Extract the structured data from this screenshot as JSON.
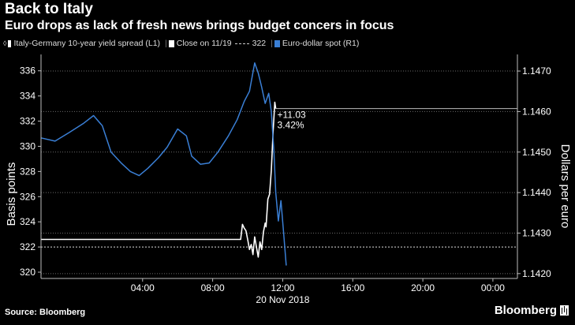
{
  "header": {
    "title": "Back to Italy",
    "subtitle": "Euro drops as lack of fresh news brings budget concers in focus"
  },
  "legend": {
    "series1": "Italy-Germany 10-year yield spread (L1)",
    "close": "Close on 11/19",
    "close_value": "322",
    "series2": "Euro-dollar spot (R1)"
  },
  "footer": {
    "source": "Source: Bloomberg",
    "brand": "Bloomberg"
  },
  "colors": {
    "spread": "#ffffff",
    "eurusd": "#3a7fd5",
    "close_line": "#dddddd",
    "grid": "#6a6a6a"
  },
  "chart_data": {
    "type": "line",
    "title": "Back to Italy",
    "xlabel": "20 Nov 2018",
    "ylabel_left": "Basis points",
    "ylabel_right": "Dollars per euro",
    "x_ticks": [
      "04:00",
      "08:00",
      "12:00",
      "16:00",
      "20:00",
      "00:00"
    ],
    "x_tick_hours": [
      4,
      8,
      12,
      16,
      20,
      24
    ],
    "xlim_hours": [
      -1.8,
      25.4
    ],
    "y_left_ticks": [
      "320",
      "322",
      "324",
      "326",
      "328",
      "330",
      "332",
      "334",
      "336"
    ],
    "y_left_lim": [
      319.5,
      337.3
    ],
    "y_right_ticks": [
      "1.1420",
      "1.1430",
      "1.1440",
      "1.1450",
      "1.1460",
      "1.1470"
    ],
    "y_right_lim": [
      1.14188,
      1.14741
    ],
    "close_value": 322,
    "annotation_change": "+11.03",
    "annotation_pct": "3.42%",
    "annotation_level_bp": 333.0,
    "series": [
      {
        "name": "Italy-Germany 10-year yield spread (L1)",
        "axis": "left",
        "x": [
          -1.8,
          5.0,
          8.0,
          9.0,
          9.6,
          9.7,
          9.8,
          9.9,
          10.0,
          10.1,
          10.2,
          10.3,
          10.4,
          10.5,
          10.6,
          10.7,
          10.8,
          10.9,
          11.0,
          11.05,
          11.15,
          11.25,
          11.35,
          11.45,
          11.55,
          11.6
        ],
        "values": [
          322.6,
          322.6,
          322.6,
          322.6,
          322.6,
          323.8,
          323.5,
          323.3,
          322.6,
          321.8,
          322.2,
          321.4,
          322.8,
          322.0,
          321.2,
          322.4,
          321.8,
          323.2,
          323.9,
          323.6,
          325.8,
          326.2,
          328.1,
          331.1,
          333.5,
          333.0
        ]
      },
      {
        "name": "Euro-dollar spot (R1)",
        "axis": "right",
        "x": [
          -1.8,
          -1.0,
          -0.2,
          0.6,
          1.2,
          1.7,
          2.2,
          2.8,
          3.3,
          3.8,
          4.3,
          4.9,
          5.4,
          6.0,
          6.5,
          6.8,
          7.3,
          7.8,
          8.3,
          8.9,
          9.4,
          9.8,
          10.1,
          10.4,
          10.6,
          10.8,
          11.0,
          11.2,
          11.35,
          11.5,
          11.6,
          11.75,
          11.9,
          12.05,
          12.2
        ],
        "values": [
          1.14535,
          1.14527,
          1.14548,
          1.1457,
          1.1459,
          1.14565,
          1.145,
          1.14472,
          1.14452,
          1.14442,
          1.1446,
          1.14486,
          1.14512,
          1.14557,
          1.1454,
          1.1449,
          1.1447,
          1.14473,
          1.145,
          1.1454,
          1.1458,
          1.14625,
          1.1465,
          1.1472,
          1.14695,
          1.1466,
          1.1462,
          1.14645,
          1.146,
          1.145,
          1.144,
          1.1433,
          1.1438,
          1.143,
          1.1422
        ]
      }
    ]
  }
}
